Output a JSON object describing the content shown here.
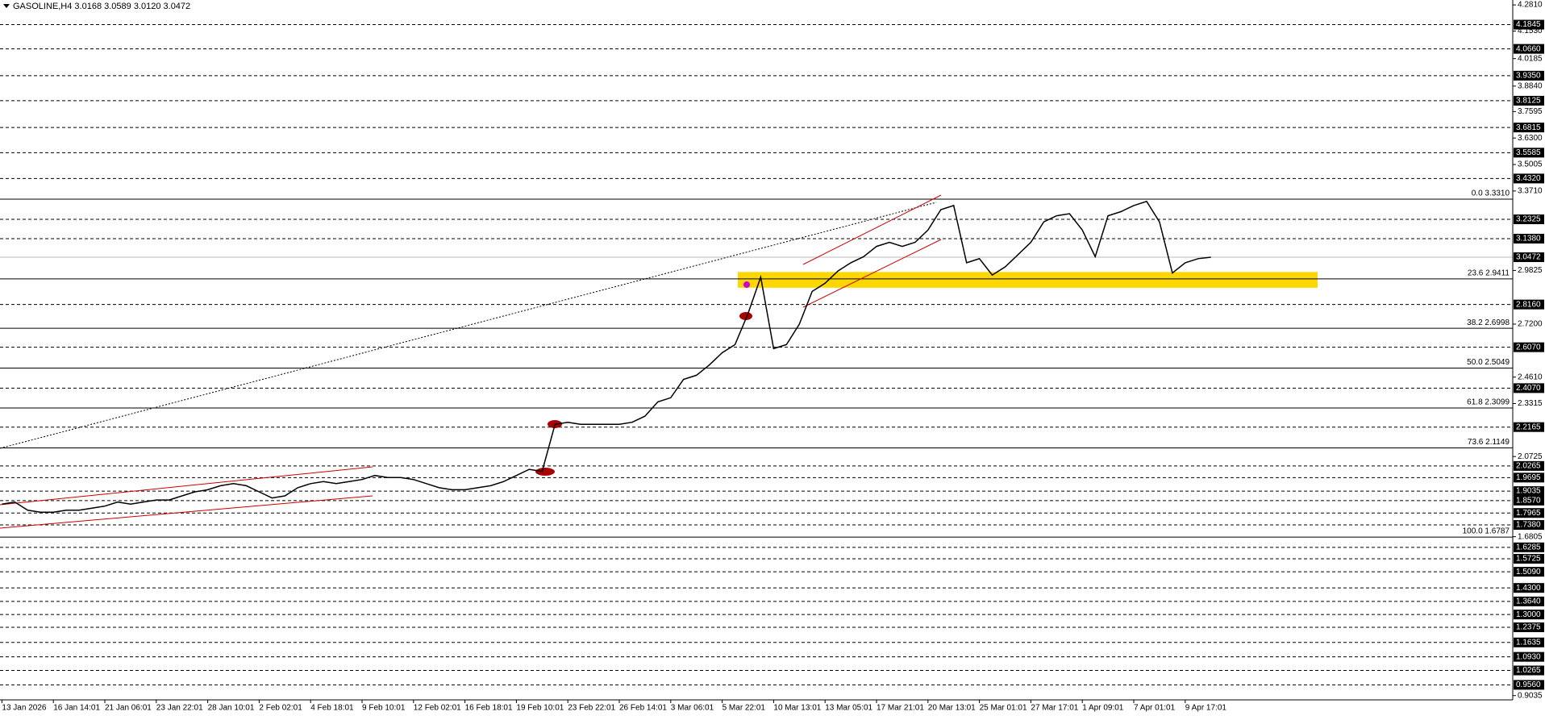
{
  "chart_data": {
    "type": "line",
    "title": "GASOLINE,H4  3.0168 3.0589 3.0120 3.0472",
    "color": "#000000",
    "categories": [
      "13 Jan 2026",
      null,
      null,
      null,
      "16 Jan 14:01",
      null,
      null,
      null,
      "21 Jan 06:01",
      null,
      null,
      null,
      "23 Jan 22:01",
      null,
      null,
      null,
      "28 Jan 10:01",
      null,
      null,
      null,
      "2 Feb 02:01",
      null,
      null,
      null,
      "4 Feb 18:01",
      null,
      null,
      null,
      "9 Feb 10:01",
      null,
      null,
      null,
      "12 Feb 02:01",
      null,
      null,
      null,
      "16 Feb 18:01",
      null,
      null,
      null,
      "19 Feb 10:01",
      null,
      null,
      null,
      "23 Feb 22:01",
      null,
      null,
      null,
      "26 Feb 14:01",
      null,
      null,
      null,
      "3 Mar 06:01",
      null,
      null,
      null,
      "5 Mar 22:01",
      null,
      null,
      null,
      "10 Mar 13:01",
      null,
      null,
      null,
      "13 Mar 05:01",
      null,
      null,
      null,
      "17 Mar 21:01",
      null,
      null,
      null,
      "20 Mar 13:01",
      null,
      null,
      null,
      "25 Mar 01:01",
      null,
      null,
      null,
      "27 Mar 17:01",
      null,
      null,
      null,
      "1 Apr 09:01",
      null,
      null,
      null,
      "7 Apr 01:01",
      null,
      null,
      null,
      "9 Apr 17:01",
      null,
      null
    ],
    "values": [
      1.84,
      1.85,
      1.81,
      1.8,
      1.8,
      1.81,
      1.81,
      1.82,
      1.83,
      1.85,
      1.84,
      1.85,
      1.86,
      1.86,
      1.88,
      1.9,
      1.91,
      1.93,
      1.94,
      1.93,
      1.9,
      1.87,
      1.88,
      1.92,
      1.94,
      1.95,
      1.94,
      1.95,
      1.96,
      1.98,
      1.97,
      1.97,
      1.96,
      1.94,
      1.92,
      1.91,
      1.91,
      1.92,
      1.93,
      1.95,
      1.98,
      2.01,
      2.0,
      2.23,
      2.24,
      2.23,
      2.23,
      2.23,
      2.23,
      2.24,
      2.27,
      2.34,
      2.36,
      2.45,
      2.47,
      2.52,
      2.58,
      2.62,
      2.77,
      2.95,
      2.6,
      2.62,
      2.72,
      2.88,
      2.92,
      2.98,
      3.02,
      3.05,
      3.1,
      3.12,
      3.1,
      3.12,
      3.18,
      3.28,
      3.3,
      3.02,
      3.04,
      2.96,
      3.0,
      3.06,
      3.12,
      3.22,
      3.25,
      3.26,
      3.18,
      3.05,
      3.25,
      3.27,
      3.3,
      3.32,
      3.22,
      2.97,
      3.02,
      3.04,
      3.0472
    ],
    "ylim": [
      0.8826,
      4.305
    ],
    "yticks": [
      {
        "value": 4.281,
        "label": "4.2810"
      },
      {
        "value": 4.153,
        "label": "4.1530"
      },
      4.0185,
      {
        "value": 3.884,
        "label": "3.8840"
      },
      3.7595,
      {
        "value": 3.63,
        "label": "3.6300"
      },
      3.5005,
      {
        "value": 3.371,
        "label": "3.3710"
      },
      2.9825,
      {
        "value": 2.72,
        "label": "2.7200"
      },
      {
        "value": 2.461,
        "label": "2.4610"
      },
      2.3315,
      2.0725,
      1.6805,
      0.9035
    ],
    "levels": [
      4.1845,
      {
        "value": 4.066,
        "label": "4.0660"
      },
      {
        "value": 3.935,
        "label": "3.9350"
      },
      3.8125,
      3.6815,
      3.5585,
      {
        "value": 3.432,
        "label": "3.4320"
      },
      3.2325,
      {
        "value": 3.138,
        "label": "3.1380"
      },
      {
        "value": 2.816,
        "label": "2.8160"
      },
      {
        "value": 2.607,
        "label": "2.6070"
      },
      {
        "value": 2.407,
        "label": "2.4070"
      },
      2.2165,
      2.0265,
      1.9695,
      1.9035,
      {
        "value": 1.857,
        "label": "1.8570"
      },
      1.7965,
      {
        "value": 1.738,
        "label": "1.7380"
      },
      1.6285,
      1.5725,
      {
        "value": 1.509,
        "label": "1.5090"
      },
      {
        "value": 1.43,
        "label": "1.4300"
      },
      {
        "value": 1.364,
        "label": "1.3640"
      },
      {
        "value": 1.3,
        "label": "1.3000"
      },
      1.2375,
      1.1635,
      {
        "value": 1.093,
        "label": "1.0930"
      },
      1.0265,
      {
        "value": 0.956,
        "label": "0.9560"
      }
    ],
    "current_price": 3.0472,
    "fib_levels": [
      {
        "value": 3.331,
        "label": "0.0 3.3310"
      },
      {
        "value": 2.9411,
        "label": "23.6 2.9411"
      },
      {
        "value": 2.6998,
        "label": "38.2 2.6998"
      },
      {
        "value": 2.5049,
        "label": "50.0 2.5049"
      },
      {
        "value": 2.3099,
        "label": "61.8 2.3099"
      },
      {
        "value": 2.1149,
        "label": "73.6 2.1149"
      },
      {
        "value": 1.6787,
        "label": "100.0 1.6787"
      }
    ],
    "zone": {
      "color": "#ffd700",
      "range": [
        2.898,
        2.975
      ]
    }
  }
}
